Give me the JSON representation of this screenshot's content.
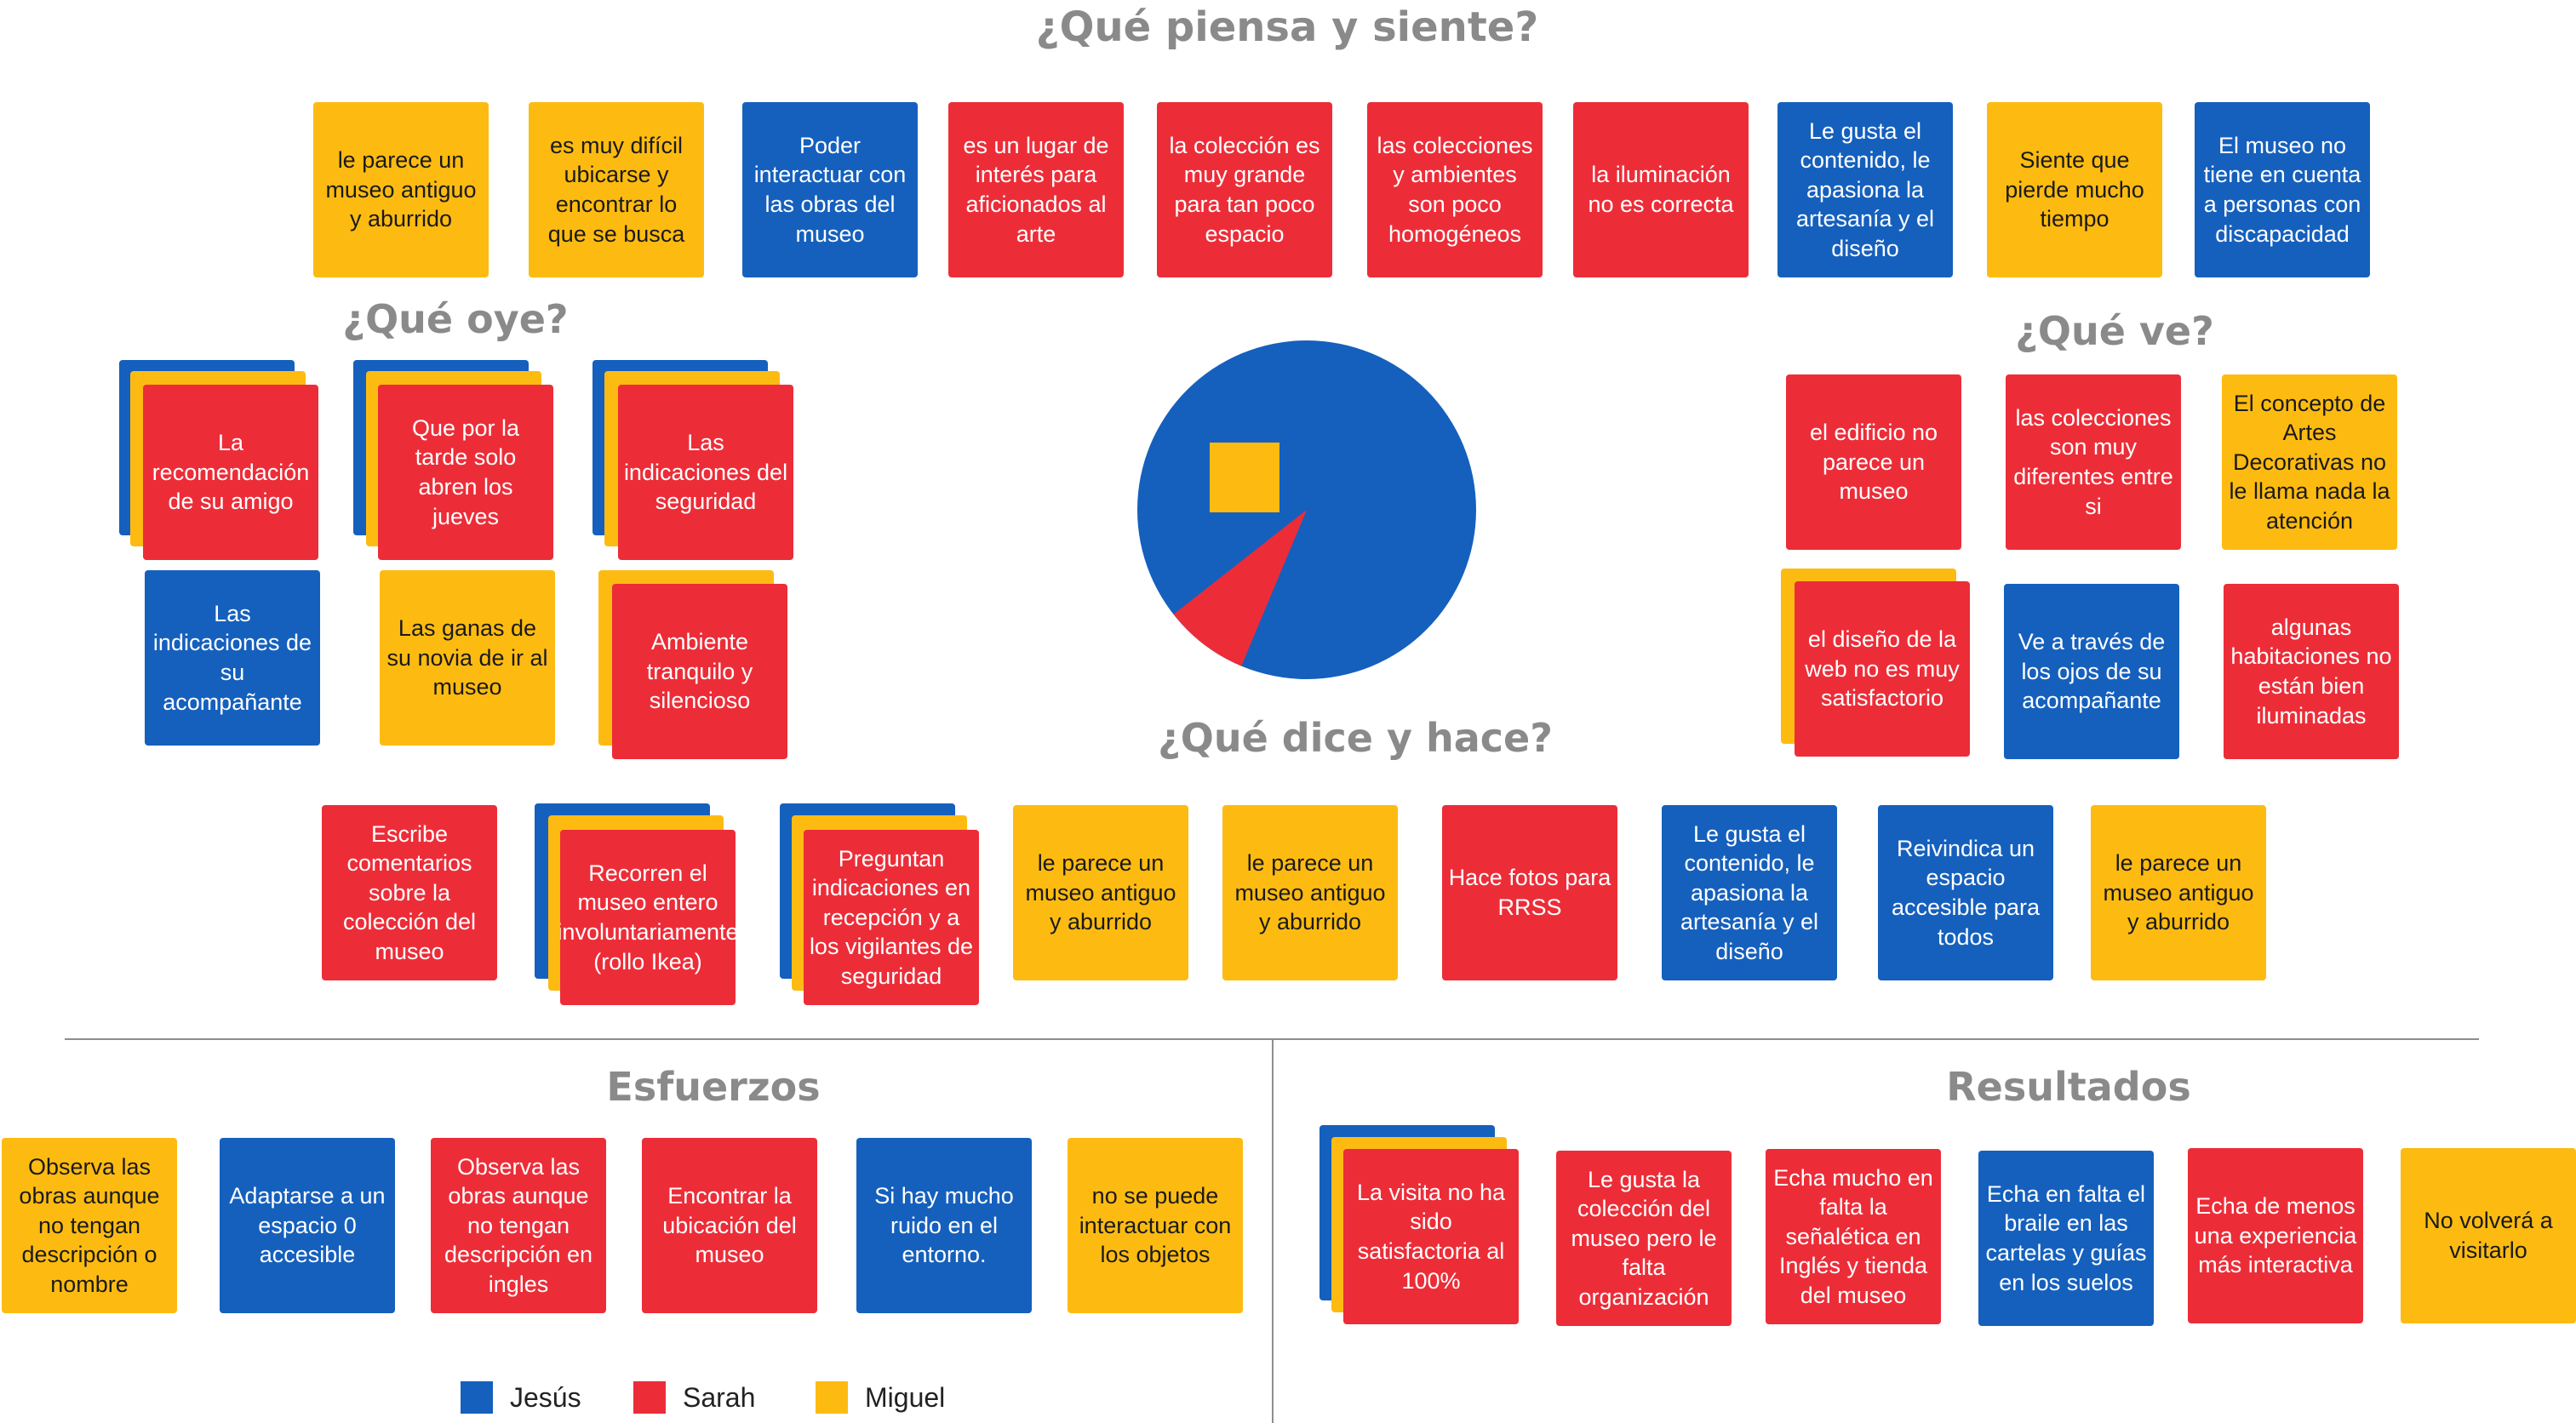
{
  "colors": {
    "jesus": "#1560bd",
    "sarah": "#ec2d38",
    "miguel": "#fdbb12",
    "heading": "#8a8a8a"
  },
  "headings": {
    "piensa": "¿Qué piensa y siente?",
    "oye": "¿Qué oye?",
    "ve": "¿Qué ve?",
    "dice": "¿Qué dice y hace?",
    "esfuerzos": "Esfuerzos",
    "resultados": "Resultados"
  },
  "piensa": [
    "le parece un museo antiguo y aburrido",
    "es muy difícil ubicarse y encontrar lo que se busca",
    "Poder interactuar con las obras del museo",
    "es un lugar de interés para aficionados al arte",
    "la colección es muy grande para tan poco espacio",
    "las colecciones y ambientes son poco homogéneos",
    "la iluminación no es correcta",
    "Le gusta el contenido, le apasiona la artesanía y el diseño",
    "Siente que pierde mucho tiempo",
    "El museo no tiene en cuenta a personas con discapacidad"
  ],
  "oye": [
    "La recomendación de su amigo",
    "Que por la tarde solo abren los jueves",
    "Las indicaciones del seguridad",
    "Las indicaciones de su acompañante",
    "Las ganas de su novia de ir al museo",
    "Ambiente tranquilo y silencioso"
  ],
  "ve": [
    "el edificio no parece un museo",
    "las colecciones son muy diferentes entre si",
    "El concepto de Artes Decorativas no le llama nada la atención",
    "el diseño de la web no es muy satisfactorio",
    "Ve a través de los ojos de su acompañante",
    "algunas habitaciones no están bien iluminadas"
  ],
  "dice": [
    "Escribe comentarios sobre la colección del museo",
    "Recorren el museo entero involuntariamente (rollo Ikea)",
    "Preguntan indicaciones en recepción y a los vigilantes de seguridad",
    "le parece un museo antiguo y aburrido",
    "le parece un museo antiguo y aburrido",
    "Hace fotos para RRSS",
    "Le gusta el contenido, le apasiona la artesanía y el diseño",
    "Reivindica un espacio accesible para todos",
    "le parece un museo antiguo y aburrido"
  ],
  "esfuerzos": [
    "Observa las obras aunque no tengan descripción o nombre",
    "Adaptarse a un espacio 0 accesible",
    "Observa las obras aunque no tengan descripción en ingles",
    "Encontrar la ubicación del museo",
    "Si hay mucho ruido en el entorno.",
    "no se puede interactuar con los objetos"
  ],
  "resultados": [
    "La visita no ha sido satisfactoria al 100%",
    "Le gusta la colección del museo pero le falta organización",
    "Echa mucho en falta la señalética en Inglés y tienda del museo",
    "Echa en falta el braile en las cartelas y guías en los suelos",
    "Echa de menos una experiencia más interactiva",
    "No volverá a visitarlo"
  ],
  "legend": [
    {
      "label": "Jesús",
      "color": "#1560bd"
    },
    {
      "label": "Sarah",
      "color": "#ec2d38"
    },
    {
      "label": "Miguel",
      "color": "#fdbb12"
    }
  ]
}
